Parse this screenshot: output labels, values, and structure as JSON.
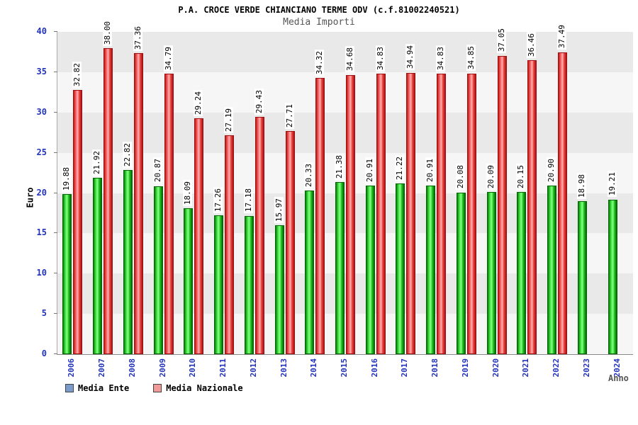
{
  "header": {
    "title": "P.A. CROCE VERDE CHIANCIANO TERME ODV (c.f.81002240521)",
    "subtitle": "Media Importi"
  },
  "chart_data": {
    "type": "bar",
    "title": "P.A. CROCE VERDE CHIANCIANO TERME ODV (c.f.81002240521)",
    "subtitle": "Media Importi",
    "xlabel": "Anno",
    "ylabel": "Euro",
    "ylim": [
      0,
      40
    ],
    "ytick_step": 5,
    "grid": "horizontal-bands",
    "legend_position": "bottom-left",
    "categories": [
      "2006",
      "2007",
      "2008",
      "2009",
      "2010",
      "2011",
      "2012",
      "2013",
      "2014",
      "2015",
      "2016",
      "2017",
      "2018",
      "2019",
      "2020",
      "2021",
      "2022",
      "2023",
      "2024"
    ],
    "series": [
      {
        "name": "Media Ente",
        "bar_color": "#22cc22",
        "values": [
          19.88,
          21.92,
          22.82,
          20.87,
          18.09,
          17.26,
          17.18,
          15.97,
          20.33,
          21.38,
          20.91,
          21.22,
          20.91,
          20.08,
          20.09,
          20.15,
          20.9,
          18.98,
          19.21
        ]
      },
      {
        "name": "Media Nazionale",
        "bar_color": "#ee3333",
        "values": [
          32.82,
          38.0,
          37.36,
          34.79,
          29.24,
          27.19,
          29.43,
          27.71,
          34.32,
          34.68,
          34.83,
          34.94,
          34.83,
          34.85,
          37.05,
          36.46,
          37.49,
          null,
          null
        ]
      }
    ],
    "legend": [
      {
        "label": "Media Ente",
        "swatch": "#7a9ccc"
      },
      {
        "label": "Media Nazionale",
        "swatch": "#f09a9a"
      }
    ]
  }
}
